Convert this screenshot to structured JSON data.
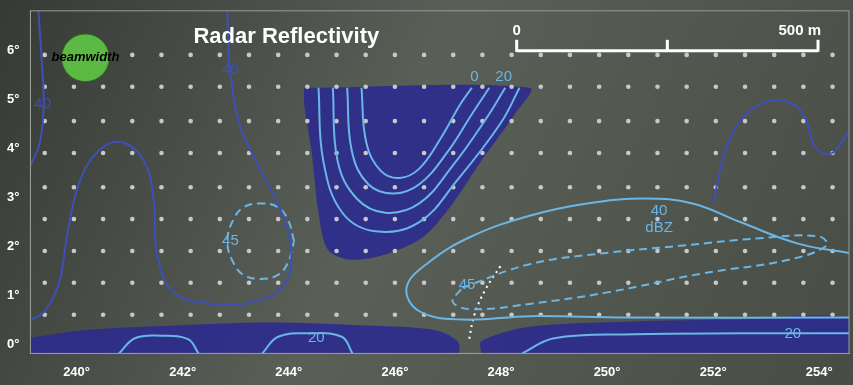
{
  "chart_data": {
    "type": "contour",
    "title": "Radar Reflectivity",
    "xlim": [
      239.13,
      254.56
    ],
    "xticks": [
      {
        "value": 240,
        "label": "240°"
      },
      {
        "value": 242,
        "label": "242°"
      },
      {
        "value": 244,
        "label": "244°"
      },
      {
        "value": 246,
        "label": "246°"
      },
      {
        "value": 248,
        "label": "248°"
      },
      {
        "value": 250,
        "label": "250°"
      },
      {
        "value": 252,
        "label": "252°"
      },
      {
        "value": 254,
        "label": "254°"
      }
    ],
    "ylim": [
      -0.19,
      6.8
    ],
    "yticks": [
      {
        "value": 0,
        "label": "0°"
      },
      {
        "value": 1,
        "label": "1°"
      },
      {
        "value": 2,
        "label": "2°"
      },
      {
        "value": 3,
        "label": "3°"
      },
      {
        "value": 4,
        "label": "4°"
      },
      {
        "value": 5,
        "label": "5°"
      },
      {
        "value": 6,
        "label": "6°"
      }
    ],
    "grid": false,
    "beamwidth": {
      "label": "beamwidth",
      "diameter": 0.9,
      "color": "#5cb944"
    },
    "scale_bar": {
      "ticks": [
        {
          "value": 0,
          "label": "0"
        },
        {
          "value": 250
        },
        {
          "value": 500,
          "label": "500 m"
        }
      ],
      "span": 5.68,
      "color": "#ffffff"
    },
    "samples": {
      "color": "#c8c8c8",
      "marker": "circle",
      "x": [
        239.4,
        239.95,
        240.5,
        241.05,
        241.6,
        242.15,
        242.7,
        243.25,
        243.8,
        244.35,
        244.9,
        245.45,
        246.0,
        246.55,
        247.1,
        247.65,
        248.2,
        248.75,
        249.3,
        249.85,
        250.4,
        250.95,
        251.5,
        252.05,
        252.6,
        253.15,
        253.7,
        254.25
      ],
      "y": [
        0.6,
        1.25,
        1.9,
        2.55,
        3.2,
        3.9,
        4.55,
        5.25,
        5.9
      ]
    },
    "series": [
      {
        "type": "line",
        "color": "#6ab6e6",
        "line_style": "solid",
        "x": [
          244.56,
          244.65,
          245.01,
          245.64,
          246.46,
          247.18,
          247.99,
          248.35
        ],
        "values": [
          5.23,
          3.74,
          2.68,
          2.3,
          2.49,
          3.35,
          4.5,
          5.23
        ]
      },
      {
        "type": "line",
        "color": "#6ab6e6",
        "line_style": "solid",
        "x": [
          244.83,
          244.92,
          245.28,
          245.82,
          246.46,
          247.09,
          247.72,
          248.08
        ],
        "values": [
          5.23,
          3.74,
          2.97,
          2.68,
          2.87,
          3.64,
          4.6,
          5.23
        ],
        "label": {
          "text": "20",
          "x": 248.05,
          "y": 5.46
        }
      },
      {
        "type": "line",
        "color": "#6ab6e6",
        "line_style": "solid",
        "x": [
          245.1,
          245.19,
          245.5,
          245.97,
          246.46,
          247.0,
          247.45,
          247.78
        ],
        "values": [
          5.23,
          3.93,
          3.26,
          3.07,
          3.26,
          3.93,
          4.69,
          5.23
        ]
      },
      {
        "type": "line",
        "color": "#6ab6e6",
        "line_style": "solid",
        "x": [
          245.37,
          245.46,
          245.73,
          246.09,
          246.46,
          246.87,
          247.23,
          247.45
        ],
        "values": [
          5.23,
          4.12,
          3.54,
          3.39,
          3.58,
          4.21,
          4.89,
          5.23
        ],
        "label": {
          "text": "0",
          "x": 247.5,
          "y": 5.46
        }
      },
      {
        "type": "line",
        "color": "#3d50b8",
        "line_style": "solid",
        "x": [
          242.84,
          242.89,
          243.07,
          243.47,
          243.87,
          244.05,
          243.87,
          243.33,
          242.57,
          241.84,
          241.52,
          241.45,
          241.27,
          240.85,
          240.4,
          240.04,
          239.82,
          239.67,
          239.4,
          239.13
        ],
        "values": [
          6.8,
          5.65,
          4.5,
          3.54,
          2.68,
          1.82,
          1.15,
          0.86,
          0.82,
          1.05,
          1.82,
          2.97,
          3.74,
          4.12,
          3.93,
          3.26,
          2.2,
          1.25,
          0.67,
          0.48
        ],
        "label": {
          "text": "40",
          "x": 242.9,
          "y": 5.6
        }
      },
      {
        "type": "line",
        "color": "#3d50b8",
        "line_style": "solid",
        "x": [
          239.28,
          239.35,
          239.38,
          239.31,
          239.13
        ],
        "values": [
          6.8,
          5.65,
          4.88,
          4.12,
          3.64
        ],
        "label": {
          "text": "40",
          "x": 239.36,
          "y": 4.9
        }
      },
      {
        "type": "line",
        "color": "#6ab6e6",
        "line_style": "dashed",
        "x": [
          244.1,
          243.98,
          243.78,
          243.47,
          243.16,
          242.96,
          242.84,
          242.96,
          243.16,
          243.47,
          243.78,
          243.98,
          244.1
        ],
        "values": [
          2.1,
          2.55,
          2.8,
          2.87,
          2.8,
          2.55,
          2.1,
          1.65,
          1.4,
          1.33,
          1.4,
          1.65,
          2.1
        ],
        "label": {
          "text": "45",
          "x": 242.9,
          "y": 2.1
        }
      },
      {
        "type": "line",
        "color": "#6ab6e6",
        "line_style": "solid",
        "x": [
          254.56,
          253.6,
          252.51,
          251.61,
          250.71,
          249.62,
          248.54,
          247.45,
          246.64,
          246.22,
          246.46,
          247.27,
          248.54,
          250.34,
          254.56
        ],
        "values": [
          1.86,
          2.05,
          2.49,
          2.87,
          2.97,
          2.87,
          2.62,
          2.2,
          1.67,
          1.15,
          0.67,
          0.5,
          0.57,
          0.54,
          0.54
        ],
        "label": {
          "text": "40 dBZ",
          "x": 250.98,
          "y": 2.55
        }
      },
      {
        "type": "line",
        "color": "#6ab6e6",
        "line_style": "dashed",
        "x": [
          247.27,
          248.54,
          249.98,
          251.43,
          252.88,
          253.99,
          254.14,
          253.42,
          251.79,
          249.98,
          248.54,
          247.45,
          247.09,
          247.27
        ],
        "values": [
          1.15,
          1.63,
          1.86,
          2.01,
          2.16,
          2.2,
          2.01,
          1.72,
          1.44,
          1.05,
          0.82,
          0.71,
          0.86,
          1.15
        ],
        "label": {
          "text": "45",
          "x": 247.36,
          "y": 1.21
        }
      },
      {
        "type": "line",
        "color": "#3d50b8",
        "line_style": "solid",
        "x": [
          254.56,
          254.23,
          253.92,
          253.74,
          253.42,
          252.88,
          252.42,
          252.15,
          252.01
        ],
        "values": [
          4.35,
          3.89,
          4.02,
          4.6,
          4.94,
          4.89,
          4.41,
          3.64,
          2.87
        ]
      },
      {
        "type": "line",
        "color": "#6ab6e6",
        "line_style": "solid",
        "x": [
          240.8,
          241.1,
          241.6,
          242.1,
          242.3
        ],
        "values": [
          -0.19,
          0.12,
          0.17,
          0.1,
          -0.19
        ]
      },
      {
        "type": "line",
        "color": "#6ab6e6",
        "line_style": "solid",
        "x": [
          243.5,
          243.8,
          244.4,
          245.0,
          245.2
        ],
        "values": [
          -0.19,
          0.15,
          0.22,
          0.15,
          -0.19
        ],
        "label": {
          "text": "20",
          "x": 244.52,
          "y": 0.12
        }
      },
      {
        "type": "line",
        "color": "#6ab6e6",
        "line_style": "solid",
        "x": [
          248.4,
          249.0,
          250.5,
          252.5,
          254.56
        ],
        "values": [
          -0.19,
          0.12,
          0.2,
          0.22,
          0.22
        ],
        "label": {
          "text": "20",
          "x": 253.5,
          "y": 0.2
        }
      },
      {
        "type": "line",
        "color": "#ffffff",
        "line_style": "dotted",
        "x": [
          247.99,
          247.7,
          247.5,
          247.4
        ],
        "values": [
          1.59,
          1.1,
          0.6,
          0.1
        ]
      },
      {
        "type": "area",
        "color": "#2c2b8e",
        "x": [
          244.29,
          248.54,
          248.26,
          247.63,
          247.09,
          246.55,
          245.91,
          245.19,
          244.74,
          244.56,
          244.43,
          244.29,
          244.29
        ],
        "values": [
          5.23,
          5.23,
          4.69,
          3.74,
          2.87,
          2.2,
          1.86,
          1.72,
          1.92,
          2.68,
          3.93,
          4.89,
          5.23
        ]
      },
      {
        "type": "area",
        "color": "#2c2b8e",
        "x": [
          239.13,
          240.22,
          241.84,
          243.65,
          245.46,
          246.73,
          247.18,
          247.18,
          239.13,
          239.13
        ],
        "values": [
          0.13,
          0.29,
          0.38,
          0.44,
          0.38,
          0.29,
          0.06,
          -0.19,
          -0.19,
          0.13
        ]
      },
      {
        "type": "area",
        "color": "#2c2b8e",
        "x": [
          247.63,
          247.63,
          248.5,
          250.5,
          252.5,
          254.56,
          254.56,
          247.63
        ],
        "values": [
          -0.19,
          0.06,
          0.35,
          0.46,
          0.5,
          0.52,
          -0.19,
          -0.19
        ]
      }
    ]
  }
}
